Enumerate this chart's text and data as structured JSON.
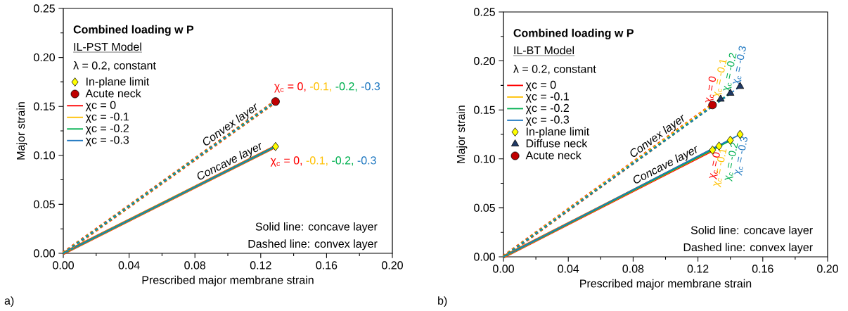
{
  "chart_data": [
    {
      "type": "line",
      "title": "Combined loading w P",
      "subtitle": "IL-PST Model",
      "xlabel": "Prescribed major membrane strain",
      "ylabel": "Major strain",
      "xlim": [
        0,
        0.2
      ],
      "ylim": [
        0,
        0.25
      ],
      "xticks": [
        {
          "value": 0,
          "label": "0.00"
        },
        {
          "value": 0.04,
          "label": "0.04"
        },
        {
          "value": 0.08,
          "label": "0.08"
        },
        {
          "value": 0.12,
          "label": "0.12"
        },
        {
          "value": 0.16,
          "label": "0.16"
        },
        {
          "value": 0.2,
          "label": "0.20"
        }
      ],
      "yticks": [
        {
          "value": 0,
          "label": "0.00"
        },
        {
          "value": 0.05,
          "label": "0.05"
        },
        {
          "value": 0.1,
          "label": "0.10"
        },
        {
          "value": 0.15,
          "label": "0.15"
        },
        {
          "value": 0.2,
          "label": "0.20"
        },
        {
          "value": 0.25,
          "label": "0.25"
        }
      ],
      "legend": "top left",
      "series": [
        {
          "name": "In-plane limit",
          "type": "scatter",
          "marker": "diamond",
          "color": "#ffff00",
          "x": [
            0.129
          ],
          "values": [
            0.109
          ]
        },
        {
          "name": "Acute neck",
          "type": "scatter",
          "marker": "circle",
          "color": "#c00000",
          "x": [
            0.129
          ],
          "values": [
            0.155
          ]
        },
        {
          "name": "χc = 0",
          "type": "line",
          "line_style": "solid",
          "color": "#ff0000",
          "x": [
            0,
            0.129
          ],
          "values": [
            0,
            0.109
          ]
        },
        {
          "name": "χc = -0.1",
          "type": "line",
          "line_style": "solid",
          "color": "#ffc000",
          "x": [
            0,
            0.129
          ],
          "values": [
            0,
            0.109
          ]
        },
        {
          "name": "χc = -0.2",
          "type": "line",
          "line_style": "solid",
          "color": "#00b050",
          "x": [
            0,
            0.129
          ],
          "values": [
            0,
            0.109
          ]
        },
        {
          "name": "χc = -0.3",
          "type": "line",
          "line_style": "solid",
          "color": "#1f78c1",
          "x": [
            0,
            0.129
          ],
          "values": [
            0,
            0.109
          ]
        },
        {
          "type": "line",
          "line_style": "dashed",
          "color": "#ff0000",
          "x": [
            0,
            0.129
          ],
          "values": [
            0,
            0.155
          ]
        },
        {
          "type": "line",
          "line_style": "dashed",
          "color": "#ffc000",
          "x": [
            0,
            0.129
          ],
          "values": [
            0,
            0.155
          ]
        },
        {
          "type": "line",
          "line_style": "dashed",
          "color": "#00b050",
          "x": [
            0,
            0.129
          ],
          "values": [
            0,
            0.155
          ]
        },
        {
          "type": "line",
          "line_style": "dashed",
          "color": "#1f78c1",
          "x": [
            0,
            0.129
          ],
          "values": [
            0,
            0.155
          ]
        }
      ],
      "annotations": [
        "λ = 0.2, constant",
        "Solid line: concave layer",
        "Dashed line: convex layer",
        "a)",
        {
          "text": "Convex layer",
          "x": 0.104,
          "y": 0.125
        },
        {
          "text": "Concave layer",
          "x": 0.103,
          "y": 0.087
        },
        {
          "text": "χ$_{c}$ = 0,",
          "x": 0.129,
          "y": 0.155
        },
        "-0.1,",
        "-0.2,",
        "-0.3",
        {
          "text": "χ$_{c}$ = 0,",
          "x": 0.129,
          "y": 0.109
        },
        "-0.1,",
        "-0.2,",
        "-0.3"
      ]
    },
    {
      "type": "line",
      "title": "Combined loading w P",
      "subtitle": "IL-BT Model",
      "xlabel": "Prescribed major membrane strain",
      "ylabel": "Major strain",
      "xlim": [
        0,
        0.2
      ],
      "ylim": [
        0,
        0.25
      ],
      "xticks": [
        {
          "value": 0,
          "label": "0.00"
        },
        {
          "value": 0.04,
          "label": "0.04"
        },
        {
          "value": 0.08,
          "label": "0.08"
        },
        {
          "value": 0.12,
          "label": "0.12"
        },
        {
          "value": 0.16,
          "label": "0.16"
        },
        {
          "value": 0.2,
          "label": "0.20"
        }
      ],
      "yticks": [
        {
          "value": 0,
          "label": "0.00"
        },
        {
          "value": 0.05,
          "label": "0.05"
        },
        {
          "value": 0.1,
          "label": "0.10"
        },
        {
          "value": 0.15,
          "label": "0.15"
        },
        {
          "value": 0.2,
          "label": "0.20"
        },
        {
          "value": 0.25,
          "label": "0.25"
        }
      ],
      "legend": "top left",
      "series": [
        {
          "name": "χc = 0",
          "type": "line",
          "line_style": "solid",
          "color": "#ff0000",
          "x": [
            0,
            0.129
          ],
          "values": [
            0,
            0.109
          ]
        },
        {
          "name": "χc = -0.1",
          "type": "line",
          "line_style": "solid",
          "color": "#ffc000",
          "x": [
            0,
            0.133
          ],
          "values": [
            0,
            0.113
          ]
        },
        {
          "name": "χc = -0.2",
          "type": "line",
          "line_style": "solid",
          "color": "#00b050",
          "x": [
            0,
            0.14
          ],
          "values": [
            0,
            0.119
          ]
        },
        {
          "name": "χc = -0.3",
          "type": "line",
          "line_style": "solid",
          "color": "#1f78c1",
          "x": [
            0,
            0.146
          ],
          "values": [
            0,
            0.125
          ]
        },
        {
          "type": "line",
          "line_style": "dashed",
          "color": "#ff0000",
          "x": [
            0,
            0.129
          ],
          "values": [
            0,
            0.155
          ]
        },
        {
          "type": "line",
          "line_style": "dashed",
          "color": "#ffc000",
          "x": [
            0,
            0.134
          ],
          "values": [
            0,
            0.161
          ]
        },
        {
          "type": "line",
          "line_style": "dashed",
          "color": "#00b050",
          "x": [
            0,
            0.14
          ],
          "values": [
            0,
            0.167
          ]
        },
        {
          "type": "line",
          "line_style": "dashed",
          "color": "#1f78c1",
          "x": [
            0,
            0.146
          ],
          "values": [
            0,
            0.174
          ]
        },
        {
          "name": "In-plane limit",
          "type": "scatter",
          "marker": "diamond",
          "color": "#ffff00",
          "x": [
            0.129,
            0.133,
            0.14,
            0.146
          ],
          "values": [
            0.109,
            0.113,
            0.119,
            0.125
          ]
        },
        {
          "name": "Diffuse neck",
          "type": "scatter",
          "marker": "triangle",
          "color": "#1f3864",
          "x": [
            0.134,
            0.14,
            0.146
          ],
          "values": [
            0.161,
            0.167,
            0.174
          ]
        },
        {
          "name": "Acute neck",
          "type": "scatter",
          "marker": "circle",
          "color": "#c00000",
          "x": [
            0.129
          ],
          "values": [
            0.155
          ]
        }
      ],
      "annotations": [
        "λ = 0.2, constant",
        "Solid line: concave layer",
        "Dashed line: convex layer",
        "b)",
        {
          "text": "Convex layer",
          "x": 0.0976,
          "y": 0.117
        },
        {
          "text": "Concave layer",
          "x": 0.102,
          "y": 0.087
        },
        {
          "text": "χ$_{c}$ = 0",
          "x": 0.129,
          "y": 0.155
        },
        {
          "text": "χ$_{c}$ = -0.1",
          "x": 0.134,
          "y": 0.161
        },
        {
          "text": "χ$_{c}$ = -0.2",
          "x": 0.14,
          "y": 0.167
        },
        {
          "text": "χ$_{c}$ = -0.3",
          "x": 0.146,
          "y": 0.174
        },
        {
          "text": "χ$_{c}$ = 0",
          "x": 0.129,
          "y": 0.109
        },
        {
          "text": "χ$_{c}$ = -0.1",
          "x": 0.133,
          "y": 0.113
        },
        {
          "text": "χ$_{c}$ = -0.2",
          "x": 0.14,
          "y": 0.119
        },
        {
          "text": "χ$_{c}$ = -0.3",
          "x": 0.146,
          "y": 0.125
        }
      ]
    }
  ]
}
